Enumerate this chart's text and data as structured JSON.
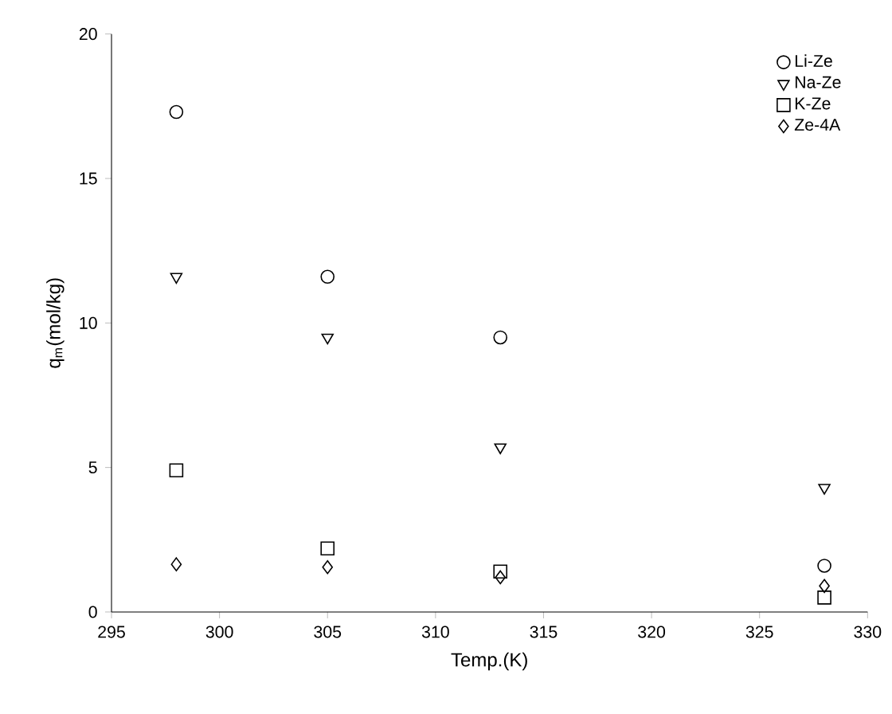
{
  "chart_data": {
    "type": "scatter",
    "xlabel": "Temp.(K)",
    "ylabel": "q$_{m}$(mol/kg)",
    "x": [
      298,
      305,
      313,
      328
    ],
    "series": [
      {
        "name": "Li-Ze",
        "color": "#000000",
        "marker": "circle",
        "values": [
          17.3,
          11.6,
          9.5,
          1.6
        ]
      },
      {
        "name": "Na-Ze",
        "color": "#000000",
        "marker": "triangle",
        "values": [
          11.6,
          9.5,
          5.7,
          4.3
        ]
      },
      {
        "name": "K-Ze",
        "color": "#000000",
        "marker": "square",
        "values": [
          4.9,
          2.2,
          1.4,
          0.5
        ]
      },
      {
        "name": "Ze-4A",
        "color": "#000000",
        "marker": "diamond",
        "values": [
          1.65,
          1.55,
          1.2,
          0.9
        ]
      }
    ],
    "xlim": [
      295,
      330
    ],
    "ylim": [
      0,
      20
    ],
    "xticks": [
      295,
      300,
      305,
      310,
      315,
      320,
      325,
      330
    ],
    "yticks": [
      0,
      5,
      10,
      15,
      20
    ],
    "grid": false,
    "legend": "top right"
  }
}
